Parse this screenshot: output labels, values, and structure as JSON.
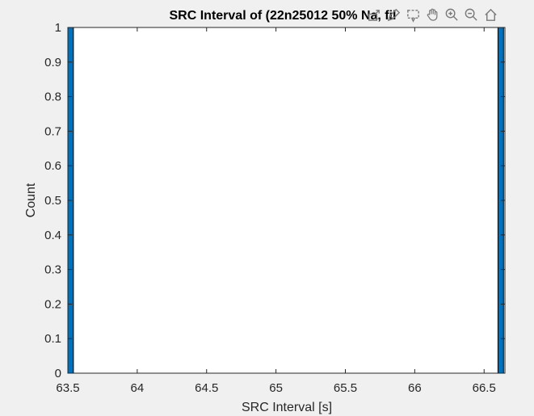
{
  "toolbar": {
    "buttons": [
      {
        "name": "export-icon"
      },
      {
        "name": "brush-icon"
      },
      {
        "name": "datatip-icon"
      },
      {
        "name": "pan-icon"
      },
      {
        "name": "zoom-in-icon"
      },
      {
        "name": "zoom-out-icon"
      },
      {
        "name": "home-icon"
      }
    ]
  },
  "chart_data": {
    "type": "bar",
    "title": "SRC Interval of (22n25012 50% Na, fil",
    "xlabel": "SRC Interval [s]",
    "ylabel": "Count",
    "xlim": [
      63.5,
      66.65
    ],
    "ylim": [
      0,
      1
    ],
    "xticks": [
      "63.5",
      "64",
      "64.5",
      "65",
      "65.5",
      "66",
      "66.5"
    ],
    "yticks": [
      "0",
      "0.1",
      "0.2",
      "0.3",
      "0.4",
      "0.5",
      "0.6",
      "0.7",
      "0.8",
      "0.9",
      "1"
    ],
    "bins": [
      {
        "x0": 63.5,
        "x1": 63.54,
        "count": 1
      },
      {
        "x0": 66.6,
        "x1": 66.64,
        "count": 1
      }
    ],
    "bar_color": "#0072BD",
    "grid": false
  }
}
